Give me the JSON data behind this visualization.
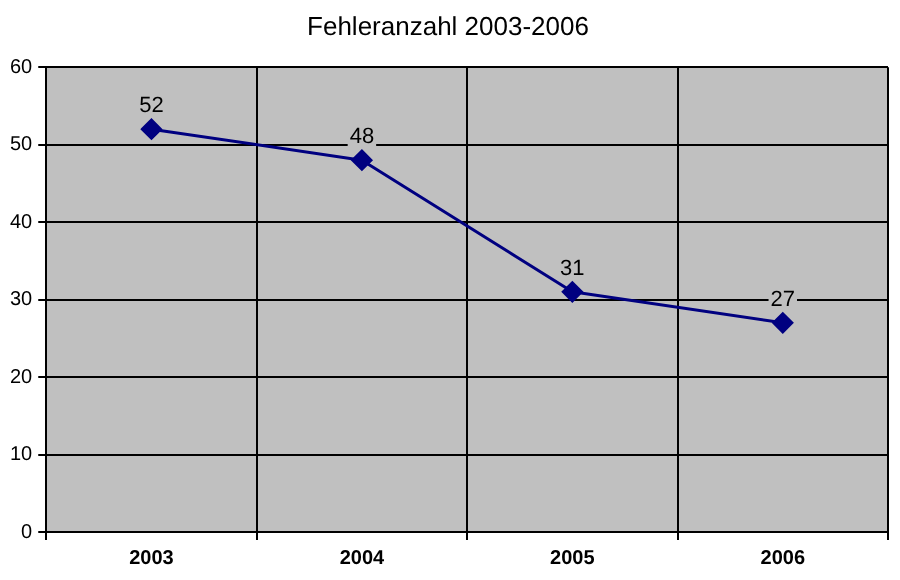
{
  "chart_data": {
    "type": "line",
    "title": "Fehleranzahl 2003-2006",
    "categories": [
      "2003",
      "2004",
      "2005",
      "2006"
    ],
    "series": [
      {
        "color": "#000080",
        "values": [
          52,
          48,
          31,
          27
        ]
      }
    ],
    "ylim": [
      0,
      60
    ],
    "yticks": [
      0,
      10,
      20,
      30,
      40,
      50,
      60
    ],
    "grid": true,
    "marker": "diamond",
    "data_labels": true,
    "legend": false
  }
}
